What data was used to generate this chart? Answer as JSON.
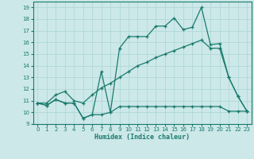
{
  "xlabel": "Humidex (Indice chaleur)",
  "xlim": [
    -0.5,
    23.5
  ],
  "ylim": [
    9,
    19.5
  ],
  "yticks": [
    9,
    10,
    11,
    12,
    13,
    14,
    15,
    16,
    17,
    18,
    19
  ],
  "xticks": [
    0,
    1,
    2,
    3,
    4,
    5,
    6,
    7,
    8,
    9,
    10,
    11,
    12,
    13,
    14,
    15,
    16,
    17,
    18,
    19,
    20,
    21,
    22,
    23
  ],
  "line_color": "#1a7a6e",
  "bg_color": "#cce8e8",
  "grid_color": "#b0d8d8",
  "line_zigzag_x": [
    0,
    1,
    2,
    3,
    4,
    5,
    6,
    7,
    8,
    9,
    10,
    11,
    12,
    13,
    14,
    15,
    16,
    17,
    18,
    19,
    20,
    21,
    22,
    23
  ],
  "line_zigzag_y": [
    10.8,
    10.6,
    11.1,
    10.8,
    10.8,
    9.5,
    9.8,
    13.5,
    10.0,
    15.5,
    16.5,
    16.5,
    16.5,
    17.4,
    17.4,
    18.1,
    17.1,
    17.3,
    19.0,
    15.8,
    15.9,
    13.0,
    11.4,
    10.1
  ],
  "line_flat_x": [
    0,
    1,
    2,
    3,
    4,
    5,
    6,
    7,
    8,
    9,
    10,
    11,
    12,
    13,
    14,
    15,
    16,
    17,
    18,
    19,
    20,
    21,
    22,
    23
  ],
  "line_flat_y": [
    10.8,
    10.6,
    11.1,
    10.8,
    10.8,
    9.5,
    9.8,
    9.8,
    10.0,
    10.5,
    10.5,
    10.5,
    10.5,
    10.5,
    10.5,
    10.5,
    10.5,
    10.5,
    10.5,
    10.5,
    10.5,
    10.1,
    10.1,
    10.1
  ],
  "line_trend_x": [
    0,
    1,
    2,
    3,
    4,
    5,
    6,
    7,
    8,
    9,
    10,
    11,
    12,
    13,
    14,
    15,
    16,
    17,
    18,
    19,
    20,
    21,
    22,
    23
  ],
  "line_trend_y": [
    10.8,
    10.8,
    11.5,
    11.8,
    11.0,
    10.8,
    11.5,
    12.1,
    12.5,
    13.0,
    13.5,
    14.0,
    14.3,
    14.7,
    15.0,
    15.3,
    15.6,
    15.9,
    16.2,
    15.5,
    15.5,
    13.0,
    11.4,
    10.1
  ]
}
